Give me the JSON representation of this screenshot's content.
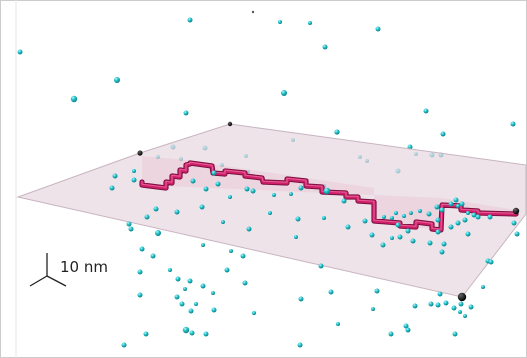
{
  "scene": {
    "scale_bar_label": "10 nm",
    "colors": {
      "background": "#ffffff",
      "frame": "#cccccc",
      "plane_fill": "#e8d8e0",
      "plane_edge": "#c8b4c0",
      "chain": "#d0206a",
      "chain_dark": "#7a1040",
      "particle": "#27c6cf",
      "particle_highlight": "#bff4f6",
      "particle_shadow": "#0a7f87",
      "corner_marker": "#000000",
      "axes": "#222222"
    },
    "particle_count": 150
  }
}
